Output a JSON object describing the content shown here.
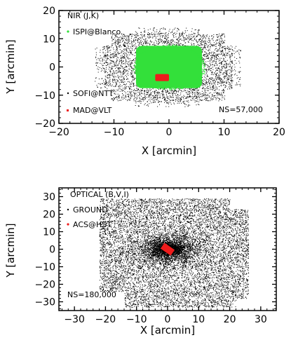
{
  "chart_data": [
    {
      "type": "scatter",
      "title": "NIR (J,K)",
      "xlabel": "X [arcmin]",
      "ylabel": "Y [arcmin]",
      "xlim": [
        -20,
        20
      ],
      "ylim": [
        -20,
        20
      ],
      "xticks": [
        "-20",
        "-10",
        "0",
        "10",
        "20"
      ],
      "yticks": [
        "-20",
        "-10",
        "0",
        "10",
        "20"
      ],
      "annotation": "NS=57,000",
      "ns": 57000,
      "grid": false,
      "legend_position": "left",
      "series": [
        {
          "name": "ISPI@Blanco",
          "color": "#33e03a",
          "region": {
            "shape": "rounded-square",
            "x": [
              -6,
              6
            ],
            "y": [
              -7.5,
              7.5
            ]
          }
        },
        {
          "name": "SOFI@NTT",
          "color": "#000000",
          "region": {
            "shape": "ragged",
            "x": [
              -13.5,
              13
            ],
            "y": [
              -14,
              14
            ]
          }
        },
        {
          "name": "MAD@VLT",
          "color": "#ee1c1c",
          "region": {
            "shape": "square",
            "x": [
              -2.5,
              0
            ],
            "y": [
              -5,
              -2.5
            ]
          }
        }
      ]
    },
    {
      "type": "scatter",
      "title": "OPTICAL (B,V,I)",
      "xlabel": "X [arcmin]",
      "ylabel": "Y [arcmin]",
      "xlim": [
        -35,
        35
      ],
      "ylim": [
        -35,
        35
      ],
      "xticks": [
        "-30",
        "-20",
        "-10",
        "0",
        "10",
        "20",
        "30"
      ],
      "yticks": [
        "-30",
        "-20",
        "-10",
        "0",
        "10",
        "20",
        "30"
      ],
      "annotation": "NS=180,000",
      "ns": 180000,
      "grid": false,
      "legend_position": "left",
      "series": [
        {
          "name": "GROUND",
          "color": "#000000",
          "region": {
            "shape": "ragged",
            "x": [
              -22,
              26
            ],
            "y": [
              -33,
              29
            ]
          }
        },
        {
          "name": "ACS@HST",
          "color": "#ee1c1c",
          "region": {
            "shape": "rotated-square",
            "x": [
              -2,
              2
            ],
            "y": [
              -2,
              2
            ]
          }
        }
      ]
    }
  ]
}
